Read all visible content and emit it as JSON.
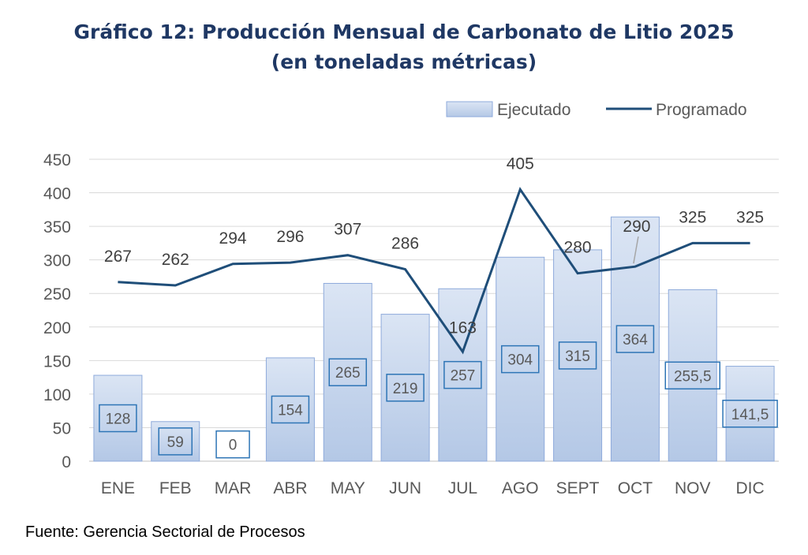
{
  "chart_data": {
    "type": "bar",
    "title": "Gráfico 12: Producción Mensual de Carbonato de Litio 2025",
    "subtitle": "(en toneladas métricas)",
    "categories": [
      "ENE",
      "FEB",
      "MAR",
      "ABR",
      "MAY",
      "JUN",
      "JUL",
      "AGO",
      "SEPT",
      "OCT",
      "NOV",
      "DIC"
    ],
    "series": [
      {
        "name": "Ejecutado",
        "kind": "bar",
        "values": [
          128,
          59,
          0,
          154,
          265,
          219,
          257,
          304,
          315,
          364,
          255.5,
          141.5
        ],
        "labels": [
          "128",
          "59",
          "0",
          "154",
          "265",
          "219",
          "257",
          "304",
          "315",
          "364",
          "255,5",
          "141,5"
        ]
      },
      {
        "name": "Programado",
        "kind": "line",
        "values": [
          267,
          262,
          294,
          296,
          307,
          286,
          163,
          405,
          280,
          290,
          325,
          325
        ],
        "labels": [
          "267",
          "262",
          "294",
          "296",
          "307",
          "286",
          "163",
          "405",
          "280",
          "290",
          "325",
          "325"
        ]
      }
    ],
    "ylim": [
      0,
      450
    ],
    "yticks": [
      0,
      50,
      100,
      150,
      200,
      250,
      300,
      350,
      400,
      450
    ],
    "grid": true,
    "legend": "top-right",
    "xlabel": "",
    "ylabel": ""
  },
  "colors": {
    "bar_fill_top": "#dbe5f4",
    "bar_fill_bottom": "#b4c8e6",
    "bar_stroke": "#8eaadb",
    "line": "#1f4e79",
    "label_box": "#2e75b6",
    "grid": "#d9d9d9",
    "text": "#595959",
    "title": "#1f3864"
  },
  "footer": {
    "label": "Fuente:",
    "text": "Gerencia Sectorial de Procesos"
  }
}
